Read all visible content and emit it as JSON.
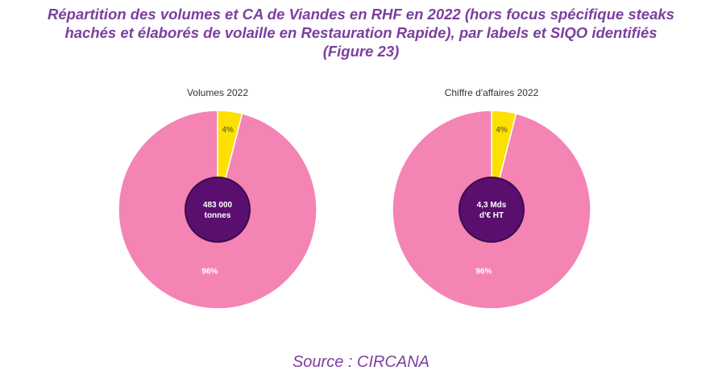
{
  "title": {
    "line1": "Répartition des volumes et CA de Viandes en RHF en 2022 (hors focus spécifique steaks",
    "line2": "hachés et élaborés de volaille en Restauration Rapide), par labels et SIQO identifiés",
    "line3": "(Figure 23)"
  },
  "source": "Source : CIRCANA",
  "colors": {
    "title": "#7B3F9E",
    "pink": "#F484B4",
    "yellow": "#FCE000",
    "center": "#5A0F6E",
    "center_border": "#3D0A4C",
    "label_dark": "#7A7430",
    "label_light": "#ffffff"
  },
  "chart_data": [
    {
      "type": "pie",
      "title": "Volumes 2022",
      "center_label": [
        "483 000",
        "tonnes"
      ],
      "slices": [
        {
          "label": "4%",
          "value": 4,
          "color": "#FCE000"
        },
        {
          "label": "96%",
          "value": 96,
          "color": "#F484B4"
        }
      ]
    },
    {
      "type": "pie",
      "title": "Chiffre d'affaires 2022",
      "center_label": [
        "4,3 Mds",
        "d'€ HT"
      ],
      "slices": [
        {
          "label": "4%",
          "value": 4,
          "color": "#FCE000"
        },
        {
          "label": "96%",
          "value": 96,
          "color": "#F484B4"
        }
      ]
    }
  ]
}
